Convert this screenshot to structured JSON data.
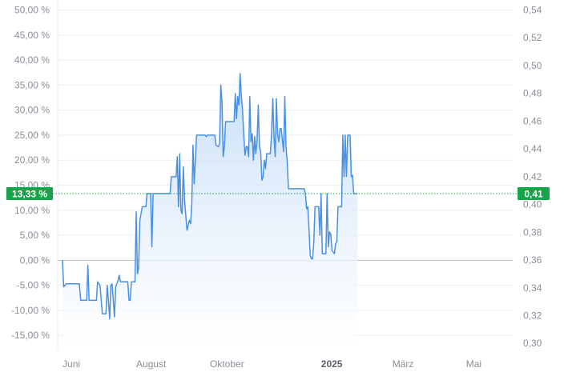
{
  "chart_data": {
    "type": "area",
    "left_axis": {
      "ticks": [
        "50,00 %",
        "45,00 %",
        "40,00 %",
        "35,00 %",
        "30,00 %",
        "25,00 %",
        "20,00 %",
        "15,00 %",
        "10,00 %",
        "5,00 %",
        "0,00 %",
        "-5,00 %",
        "-10,00 %",
        "-15,00 %"
      ],
      "values": [
        50,
        45,
        40,
        35,
        30,
        25,
        20,
        15,
        10,
        5,
        0,
        -5,
        -10,
        -15
      ]
    },
    "right_axis": {
      "ticks": [
        "0,54",
        "0,52",
        "0,50",
        "0,48",
        "0,46",
        "0,44",
        "0,42",
        "0,40",
        "0,38",
        "0,36",
        "0,34",
        "0,32",
        "0,30"
      ],
      "values": [
        0.54,
        0.52,
        0.5,
        0.48,
        0.46,
        0.44,
        0.42,
        0.4,
        0.38,
        0.36,
        0.34,
        0.32,
        0.3
      ]
    },
    "x_axis": {
      "labels": [
        {
          "text": "Juni",
          "date": "2024-06-01",
          "bold": false
        },
        {
          "text": "August",
          "date": "2024-08-01",
          "bold": false
        },
        {
          "text": "Oktober",
          "date": "2024-10-01",
          "bold": false
        },
        {
          "text": "2025",
          "date": "2025-01-01",
          "bold": true
        },
        {
          "text": "März",
          "date": "2025-03-01",
          "bold": false
        },
        {
          "text": "Mai",
          "date": "2025-05-01",
          "bold": false
        }
      ],
      "range": [
        "2024-05-28",
        "2025-05-31"
      ]
    },
    "ylim_percent": [
      -18,
      52
    ],
    "baseline_percent": 0,
    "current": {
      "percent": 13.33,
      "percent_label": "13,33 %",
      "price_label": "0,41"
    },
    "grid": true,
    "colors": {
      "line": "#4a90e2",
      "fill_top": "#c3dcf8",
      "fill_bottom": "#ffffff",
      "badge": "#16a34a",
      "grid": "#eceef1",
      "zero_line": "#b9bcc2"
    },
    "series": [
      {
        "values": [
          [
            "2024-06-01",
            0.0
          ],
          [
            "2024-06-02",
            -5.3
          ],
          [
            "2024-06-04",
            -4.7
          ],
          [
            "2024-06-15",
            -4.7
          ],
          [
            "2024-06-16",
            -8.0
          ],
          [
            "2024-06-21",
            -8.0
          ],
          [
            "2024-06-22",
            -1.0
          ],
          [
            "2024-06-23",
            -8.0
          ],
          [
            "2024-06-29",
            -8.0
          ],
          [
            "2024-06-30",
            -4.3
          ],
          [
            "2024-07-02",
            -5.0
          ],
          [
            "2024-07-04",
            -10.7
          ],
          [
            "2024-07-07",
            -10.7
          ],
          [
            "2024-07-08",
            -5.0
          ],
          [
            "2024-07-09",
            -8.0
          ],
          [
            "2024-07-10",
            -11.7
          ],
          [
            "2024-07-11",
            -5.0
          ],
          [
            "2024-07-12",
            -4.7
          ],
          [
            "2024-07-14",
            -11.3
          ],
          [
            "2024-07-15",
            -5.3
          ],
          [
            "2024-07-17",
            -4.0
          ],
          [
            "2024-07-18",
            -3.0
          ],
          [
            "2024-07-19",
            -4.3
          ],
          [
            "2024-07-25",
            -4.3
          ],
          [
            "2024-07-26",
            -8.0
          ],
          [
            "2024-07-27",
            -8.0
          ],
          [
            "2024-07-28",
            -4.3
          ],
          [
            "2024-07-31",
            -4.3
          ],
          [
            "2024-08-01",
            9.7
          ],
          [
            "2024-08-02",
            -2.7
          ],
          [
            "2024-08-03",
            -1.5
          ],
          [
            "2024-08-04",
            8.0
          ],
          [
            "2024-08-06",
            10.7
          ],
          [
            "2024-08-09",
            10.7
          ],
          [
            "2024-08-10",
            13.33
          ],
          [
            "2024-08-13",
            13.33
          ],
          [
            "2024-08-14",
            2.7
          ],
          [
            "2024-08-15",
            13.33
          ],
          [
            "2024-08-29",
            13.33
          ],
          [
            "2024-08-30",
            16.7
          ],
          [
            "2024-09-03",
            16.7
          ],
          [
            "2024-09-04",
            20.7
          ],
          [
            "2024-09-05",
            10.7
          ],
          [
            "2024-09-06",
            21.3
          ],
          [
            "2024-09-07",
            10.0
          ],
          [
            "2024-09-08",
            9.3
          ],
          [
            "2024-09-09",
            18.7
          ],
          [
            "2024-09-10",
            12.0
          ],
          [
            "2024-09-12",
            6.0
          ],
          [
            "2024-09-14",
            8.0
          ],
          [
            "2024-09-15",
            7.3
          ],
          [
            "2024-09-16",
            11.3
          ],
          [
            "2024-09-17",
            23.0
          ],
          [
            "2024-09-18",
            15.3
          ],
          [
            "2024-09-20",
            25.0
          ],
          [
            "2024-09-27",
            25.0
          ],
          [
            "2024-09-28",
            24.7
          ],
          [
            "2024-09-29",
            25.0
          ],
          [
            "2024-10-05",
            25.0
          ],
          [
            "2024-10-06",
            23.0
          ],
          [
            "2024-10-08",
            22.7
          ],
          [
            "2024-10-09",
            23.3
          ],
          [
            "2024-10-10",
            35.0
          ],
          [
            "2024-10-11",
            31.7
          ],
          [
            "2024-10-12",
            20.7
          ],
          [
            "2024-10-13",
            22.7
          ],
          [
            "2024-10-14",
            27.7
          ],
          [
            "2024-10-21",
            27.7
          ],
          [
            "2024-10-22",
            33.3
          ],
          [
            "2024-10-23",
            28.3
          ],
          [
            "2024-10-24",
            32.7
          ],
          [
            "2024-10-25",
            31.0
          ],
          [
            "2024-10-26",
            37.3
          ],
          [
            "2024-10-27",
            33.0
          ],
          [
            "2024-10-28",
            30.0
          ],
          [
            "2024-10-29",
            25.0
          ],
          [
            "2024-10-30",
            21.0
          ],
          [
            "2024-10-31",
            22.7
          ],
          [
            "2024-11-01",
            22.7
          ],
          [
            "2024-11-02",
            20.7
          ],
          [
            "2024-11-03",
            32.7
          ],
          [
            "2024-11-04",
            23.7
          ],
          [
            "2024-11-05",
            25.3
          ],
          [
            "2024-11-06",
            20.0
          ],
          [
            "2024-11-07",
            24.7
          ],
          [
            "2024-11-08",
            21.3
          ],
          [
            "2024-11-09",
            23.7
          ],
          [
            "2024-11-10",
            31.0
          ],
          [
            "2024-11-11",
            22.7
          ],
          [
            "2024-11-12",
            21.7
          ],
          [
            "2024-11-13",
            16.0
          ],
          [
            "2024-11-14",
            16.7
          ],
          [
            "2024-11-15",
            20.0
          ],
          [
            "2024-11-16",
            18.3
          ],
          [
            "2024-11-17",
            21.3
          ],
          [
            "2024-11-20",
            21.3
          ],
          [
            "2024-11-21",
            25.0
          ],
          [
            "2024-11-22",
            32.3
          ],
          [
            "2024-11-23",
            25.0
          ],
          [
            "2024-11-24",
            20.7
          ],
          [
            "2024-11-25",
            32.3
          ],
          [
            "2024-11-26",
            25.3
          ],
          [
            "2024-11-27",
            23.7
          ],
          [
            "2024-11-28",
            26.3
          ],
          [
            "2024-11-29",
            26.3
          ],
          [
            "2024-11-30",
            24.0
          ],
          [
            "2024-12-01",
            21.7
          ],
          [
            "2024-12-02",
            32.7
          ],
          [
            "2024-12-03",
            22.7
          ],
          [
            "2024-12-04",
            19.7
          ],
          [
            "2024-12-05",
            14.3
          ],
          [
            "2024-12-18",
            14.3
          ],
          [
            "2024-12-19",
            13.33
          ],
          [
            "2024-12-20",
            10.3
          ],
          [
            "2024-12-21",
            10.7
          ],
          [
            "2024-12-22",
            6.3
          ],
          [
            "2024-12-23",
            1.0
          ],
          [
            "2024-12-24",
            0.3
          ],
          [
            "2024-12-25",
            0.3
          ],
          [
            "2024-12-26",
            3.7
          ],
          [
            "2024-12-27",
            10.7
          ],
          [
            "2024-12-30",
            10.7
          ],
          [
            "2024-12-31",
            5.0
          ],
          [
            "2025-01-01",
            13.33
          ],
          [
            "2025-01-02",
            1.3
          ],
          [
            "2025-01-05",
            1.3
          ],
          [
            "2025-01-06",
            13.33
          ],
          [
            "2025-01-07",
            2.7
          ],
          [
            "2025-01-08",
            5.7
          ],
          [
            "2025-01-09",
            5.3
          ],
          [
            "2025-01-10",
            2.0
          ],
          [
            "2025-01-12",
            1.3
          ],
          [
            "2025-01-13",
            3.3
          ],
          [
            "2025-01-14",
            3.7
          ],
          [
            "2025-01-15",
            10.7
          ],
          [
            "2025-01-18",
            10.7
          ],
          [
            "2025-01-19",
            25.0
          ],
          [
            "2025-01-20",
            16.7
          ],
          [
            "2025-01-21",
            25.0
          ],
          [
            "2025-01-22",
            16.7
          ],
          [
            "2025-01-23",
            25.0
          ],
          [
            "2025-01-25",
            25.0
          ],
          [
            "2025-01-26",
            16.7
          ],
          [
            "2025-01-27",
            17.0
          ],
          [
            "2025-01-28",
            13.33
          ],
          [
            "2025-01-31",
            13.33
          ]
        ]
      }
    ]
  }
}
